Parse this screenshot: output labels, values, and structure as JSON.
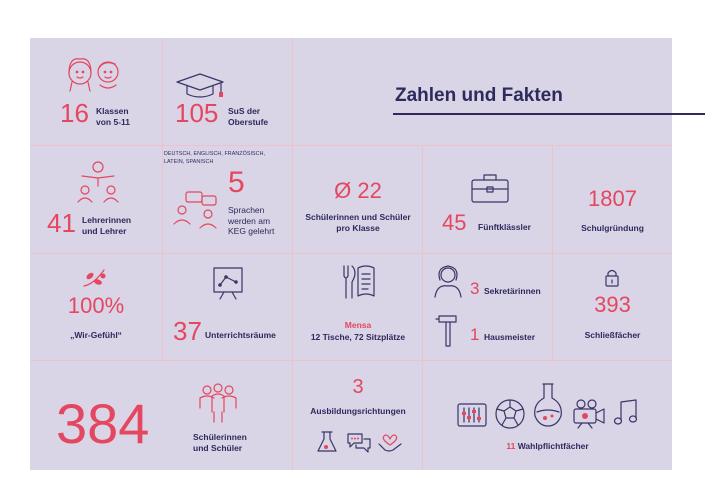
{
  "title": "Zahlen und Fakten",
  "facts": {
    "klassen": {
      "number": "16",
      "label_line1": "Klassen",
      "label_line2": "von 5-11"
    },
    "oberstufe": {
      "number": "105",
      "label_line1": "SuS der",
      "label_line2": "Oberstufe"
    },
    "lehrer": {
      "number": "41",
      "label_line1": "Lehrerinnen",
      "label_line2": "und Lehrer"
    },
    "sprachen": {
      "list_line1": "DEUTSCH, ENGLISCH, FRANZÖSISCH,",
      "list_line2": "LATEIN, SPANISCH",
      "number": "5",
      "text_line1": "Sprachen",
      "text_line2": "werden am",
      "text_line3": "KEG gelehrt"
    },
    "pro_klasse": {
      "number": "Ø 22",
      "label_line1": "Schülerinnen und Schüler",
      "label_line2": "pro Klasse"
    },
    "fuenftklaessler": {
      "number": "45",
      "label": "Fünftklässler"
    },
    "gruendung": {
      "number": "1807",
      "label": "Schulgründung"
    },
    "wir_gefuehl": {
      "number": "100%",
      "label": "„Wir-Gefühl“"
    },
    "unterricht": {
      "number": "37",
      "label": "Unterrichtsräume"
    },
    "mensa": {
      "title": "Mensa",
      "label": "12 Tische, 72 Sitzplätze"
    },
    "sekretaerinnen": {
      "number": "3",
      "label": "Sekretärinnen"
    },
    "hausmeister": {
      "number": "1",
      "label": "Hausmeister"
    },
    "schliessfaecher": {
      "number": "393",
      "label": "Schließfächer"
    },
    "schueler": {
      "number": "384",
      "label_line1": "Schülerinnen",
      "label_line2": "und Schüler"
    },
    "ausbildung": {
      "number": "3",
      "label": "Ausbildungsrichtungen"
    },
    "wahlpflicht": {
      "number": "11",
      "label": "Wahlpflichtfächer"
    }
  },
  "icons": [
    "kids-faces-icon",
    "graduation-cap-icon",
    "teacher-students-icon",
    "chat-people-icon",
    "briefcase-icon",
    "olive-branch-icon",
    "presentation-board-icon",
    "menu-cutlery-icon",
    "woman-icon",
    "hammer-icon",
    "padlock-icon",
    "group-people-icon",
    "chemistry-icon",
    "speech-bubbles-icon",
    "handshake-heart-icon",
    "mixer-icon",
    "football-icon",
    "flask-icon",
    "camera-icon",
    "music-note-icon"
  ],
  "colors": {
    "panel": "#d9d4e6",
    "accent": "#e4475f",
    "text": "#2e2a5c",
    "grid": "#efc2cb"
  }
}
